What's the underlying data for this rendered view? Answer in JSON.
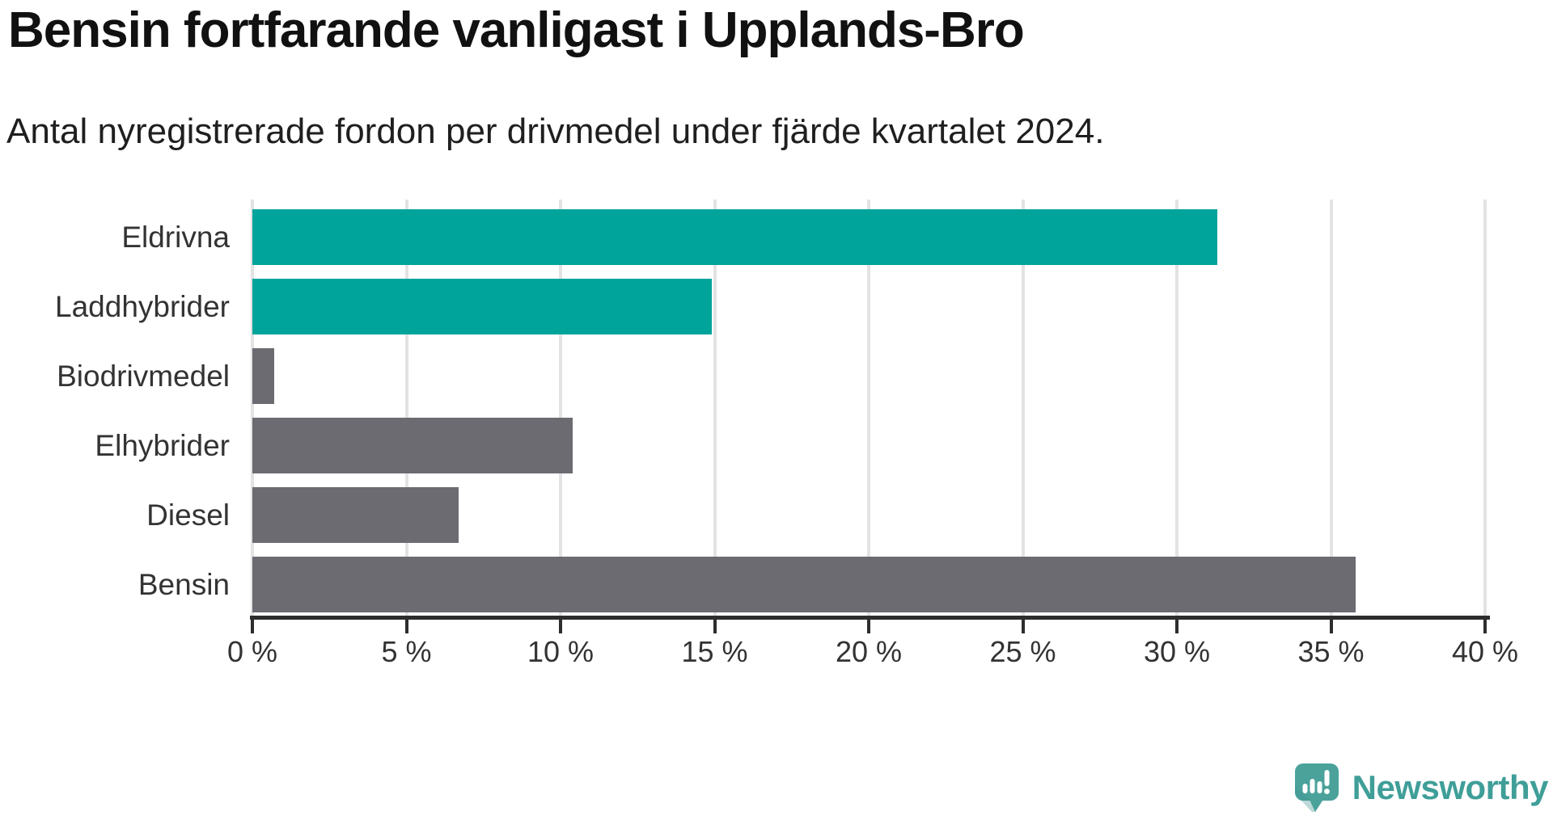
{
  "header": {
    "title": "Bensin fortfarande vanligast i Upplands-Bro",
    "subtitle": "Antal nyregistrerade fordon per drivmedel under fjärde kvartalet 2024."
  },
  "chart_data": {
    "type": "bar",
    "orientation": "horizontal",
    "title": "Bensin fortfarande vanligast i Upplands-Bro",
    "subtitle": "Antal nyregistrerade fordon per drivmedel under fjärde kvartalet 2024.",
    "categories": [
      "Eldrivna",
      "Laddhybrider",
      "Biodrivmedel",
      "Elhybrider",
      "Diesel",
      "Bensin"
    ],
    "values": [
      31.3,
      14.9,
      0.7,
      10.4,
      6.7,
      35.8
    ],
    "unit": "%",
    "bar_colors": [
      "#00a49b",
      "#00a49b",
      "#6c6b72",
      "#6c6b72",
      "#6c6b72",
      "#6c6b72"
    ],
    "highlight_color": "#00a49b",
    "default_color": "#6c6b72",
    "xlabel": "",
    "ylabel": "",
    "xlim": [
      0,
      40
    ],
    "x_ticks": [
      0,
      5,
      10,
      15,
      20,
      25,
      30,
      35,
      40
    ],
    "x_tick_labels": [
      "0 %",
      "5 %",
      "10 %",
      "15 %",
      "20 %",
      "25 %",
      "30 %",
      "35 %",
      "40 %"
    ],
    "grid": true,
    "legend": false
  },
  "footer": {
    "brand": "Newsworthy"
  },
  "colors": {
    "grid": "#e3e3e3",
    "axis": "#2d2d2d",
    "label_text": "#333333",
    "logo_badge": "#4aa29b",
    "logo_badge_shade": "#3f918c",
    "logo_mark": "#ffffff",
    "logo_text": "#3f9e98"
  }
}
